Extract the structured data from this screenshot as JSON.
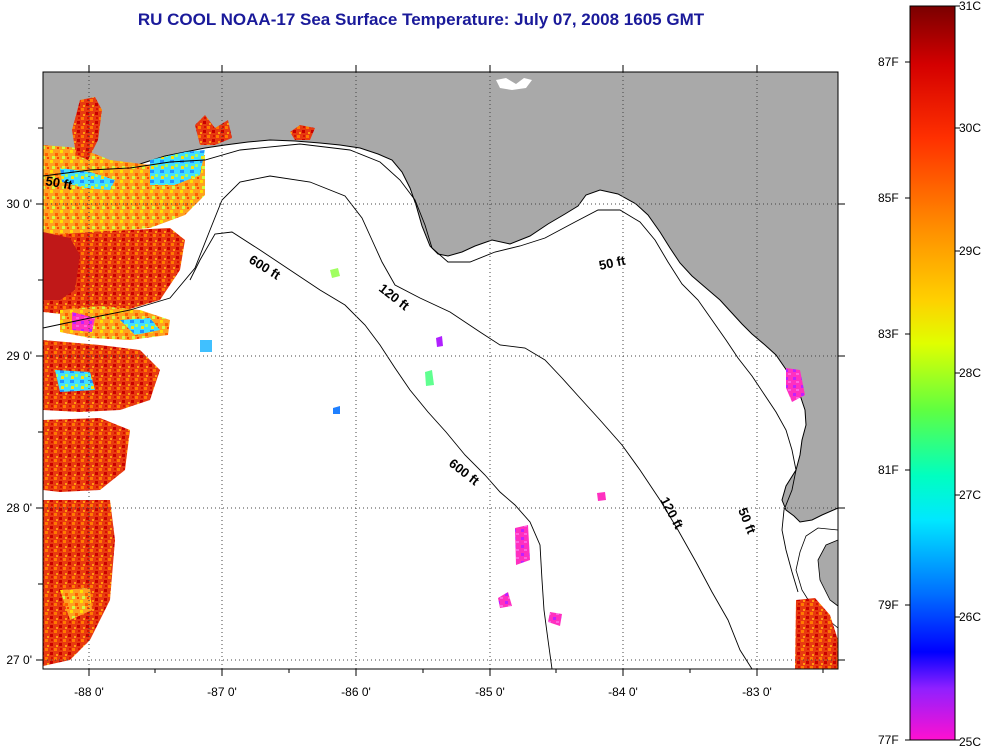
{
  "title": "RU COOL  NOAA-17  Sea Surface Temperature:  July 07, 2008 1605 GMT",
  "map": {
    "lon_ticks": [
      "-88 0'",
      "-87 0'",
      "-86 0'",
      "-85 0'",
      "-84 0'",
      "-83 0'"
    ],
    "lat_ticks": [
      "30 0'",
      "29 0'",
      "28 0'",
      "27 0'"
    ],
    "contour_labels": {
      "c50_west": "50 ft",
      "c50_east": "50 ft",
      "c50_south": "50 ft",
      "c120_north": "120 ft",
      "c120_south": "120 ft",
      "c600_north": "600 ft",
      "c600_south": "600 ft"
    },
    "colors": {
      "land": "#a9a9a9",
      "water": "#ffffff",
      "coast": "#000000"
    }
  },
  "colorbar": {
    "celsius": [
      "31C",
      "30C",
      "29C",
      "28C",
      "27C",
      "26C",
      "25C"
    ],
    "fahrenheit": [
      "87F",
      "85F",
      "83F",
      "81F",
      "79F",
      "77F"
    ]
  }
}
